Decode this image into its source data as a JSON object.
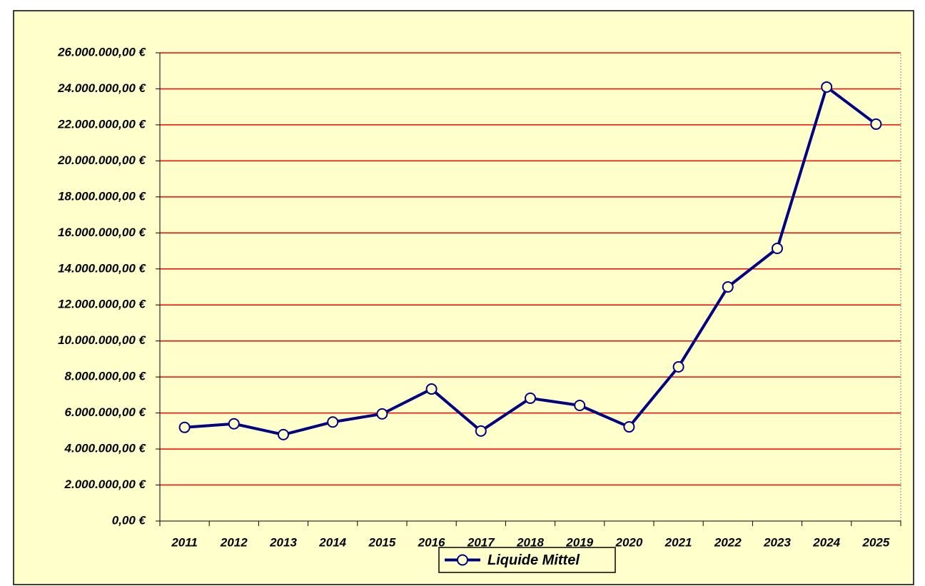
{
  "chart_data": {
    "type": "line",
    "categories": [
      "2011",
      "2012",
      "2013",
      "2014",
      "2015",
      "2016",
      "2017",
      "2018",
      "2019",
      "2020",
      "2021",
      "2022",
      "2023",
      "2024",
      "2025"
    ],
    "series": [
      {
        "name": "Liquide Mittel",
        "color": "#000080",
        "values": [
          5200000,
          5400000,
          4800000,
          5500000,
          5950000,
          7330000,
          5000000,
          6820000,
          6420000,
          5230000,
          8560000,
          13000000,
          15140000,
          24100000,
          22040000
        ]
      }
    ],
    "ylim": [
      0,
      26000000
    ],
    "yticks": [
      {
        "value": 0,
        "label": "0,00 €"
      },
      {
        "value": 2000000,
        "label": "2.000.000,00 €"
      },
      {
        "value": 4000000,
        "label": "4.000.000,00 €"
      },
      {
        "value": 6000000,
        "label": "6.000.000,00 €"
      },
      {
        "value": 8000000,
        "label": "8.000.000,00 €"
      },
      {
        "value": 10000000,
        "label": "10.000.000,00 €"
      },
      {
        "value": 12000000,
        "label": "12.000.000,00 €"
      },
      {
        "value": 14000000,
        "label": "14.000.000,00 €"
      },
      {
        "value": 16000000,
        "label": "16.000.000,00 €"
      },
      {
        "value": 18000000,
        "label": "18.000.000,00 €"
      },
      {
        "value": 20000000,
        "label": "20.000.000,00 €"
      },
      {
        "value": 22000000,
        "label": "22.000.000,00 €"
      },
      {
        "value": 24000000,
        "label": "24.000.000,00 €"
      },
      {
        "value": 26000000,
        "label": "26.000.000,00 €"
      }
    ],
    "grid": true,
    "grid_color": "#ff0000",
    "background": "#ffffcc",
    "legend": "bottom"
  }
}
